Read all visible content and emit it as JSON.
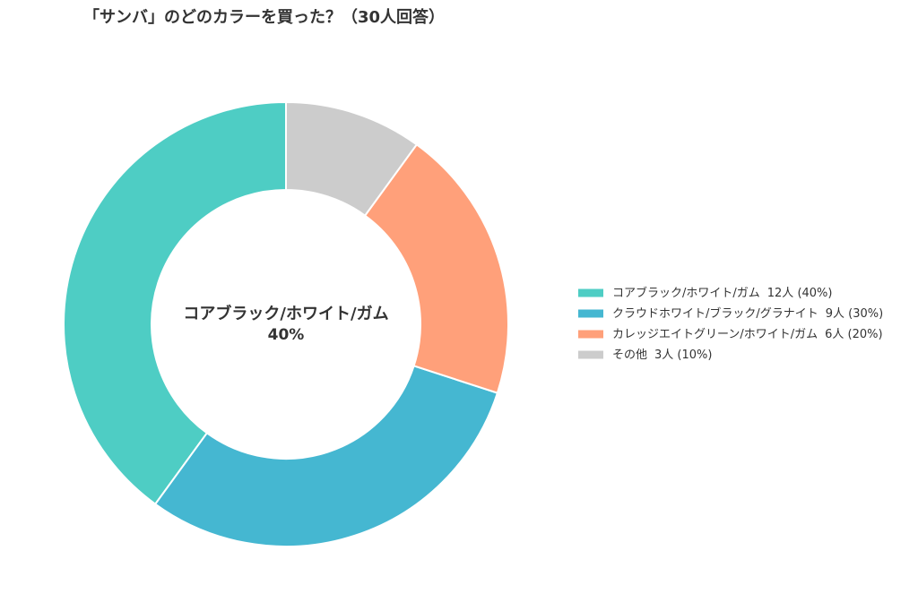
{
  "chart_data": {
    "type": "donut",
    "title": "「サンバ」のどのカラーを買った？（30人回答）",
    "categories": [
      "コアブラック/ホワイト/ガム",
      "クラウドホワイト/ブラック/グラナイト",
      "カレッジエイトグリーン/ホワイト/ガム",
      "その他"
    ],
    "values": [
      12,
      9,
      6,
      3
    ],
    "value_labels": [
      "12人 (40%)",
      "9人 (30%)",
      "6人 (20%)",
      "3人 (10%)"
    ],
    "colors": [
      "#4ecdc4",
      "#45b7d1",
      "#ffa07a",
      "#cccccc"
    ],
    "center_label": "40%",
    "legend": "right"
  }
}
